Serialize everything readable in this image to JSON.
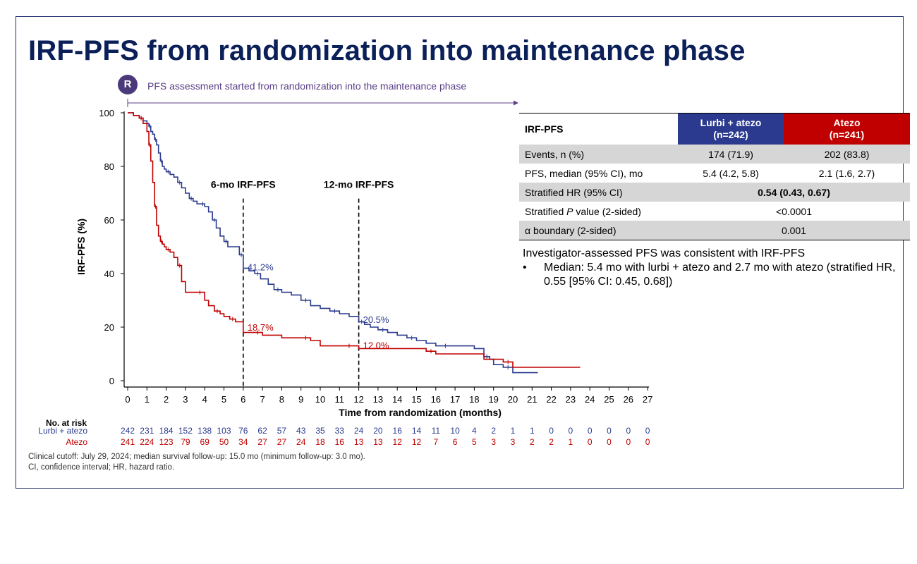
{
  "title": "IRF-PFS from randomization into maintenance phase",
  "randomization": {
    "badge": "R",
    "note": "PFS assessment started from randomization into the maintenance phase"
  },
  "colors": {
    "lurbi": "#2b3a8f",
    "atezo": "#c00000",
    "title": "#0b2058",
    "badge": "#4b3a7a"
  },
  "chart_data": {
    "type": "line",
    "subtype": "kaplan-meier",
    "xlabel": "Time from randomization (months)",
    "ylabel": "IRF-PFS (%)",
    "xlim": [
      0,
      27
    ],
    "ylim": [
      0,
      100
    ],
    "xticks": [
      0,
      1,
      2,
      3,
      4,
      5,
      6,
      7,
      8,
      9,
      10,
      11,
      12,
      13,
      14,
      15,
      16,
      17,
      18,
      19,
      20,
      21,
      22,
      23,
      24,
      25,
      26,
      27
    ],
    "yticks": [
      0,
      20,
      40,
      60,
      80,
      100
    ],
    "grid": false,
    "reference_lines": [
      {
        "x": 6,
        "label": "6-mo IRF-PFS"
      },
      {
        "x": 12,
        "label": "12-mo IRF-PFS"
      }
    ],
    "annotations": [
      {
        "series": "Lurbi + atezo",
        "x": 6,
        "y": 41.2,
        "text": "41.2%"
      },
      {
        "series": "Lurbi + atezo",
        "x": 12,
        "y": 20.5,
        "text": "20.5%"
      },
      {
        "series": "Atezo",
        "x": 6,
        "y": 18.7,
        "text": "18.7%"
      },
      {
        "series": "Atezo",
        "x": 12,
        "y": 12.0,
        "text": "12.0%"
      }
    ],
    "series": [
      {
        "name": "Lurbi + atezo",
        "color": "#2b3a8f",
        "x": [
          0,
          0.3,
          0.6,
          0.8,
          1.0,
          1.1,
          1.2,
          1.3,
          1.4,
          1.5,
          1.6,
          1.7,
          1.8,
          1.9,
          2.0,
          2.2,
          2.4,
          2.6,
          2.8,
          3.0,
          3.2,
          3.4,
          3.6,
          3.8,
          4.0,
          4.2,
          4.4,
          4.6,
          4.8,
          5.0,
          5.2,
          5.5,
          5.8,
          6.0,
          6.3,
          6.6,
          6.9,
          7.3,
          7.6,
          8.0,
          8.5,
          9.0,
          9.5,
          10.0,
          10.5,
          11.0,
          11.5,
          12.0,
          12.3,
          12.6,
          13.0,
          13.5,
          14.0,
          14.5,
          15.0,
          15.5,
          16.0,
          17.0,
          18.0,
          18.5,
          18.8,
          19.0,
          19.5,
          20.0,
          21.3
        ],
        "y": [
          100,
          99,
          98,
          97,
          96,
          95,
          93,
          92,
          90,
          88,
          85,
          82,
          80,
          79,
          78,
          77,
          76,
          74,
          72,
          70,
          68,
          67,
          66,
          66,
          65,
          63,
          60,
          57,
          54,
          52,
          50,
          50,
          47,
          42,
          41,
          40,
          38,
          36,
          34,
          33,
          32,
          30,
          28,
          27,
          26,
          25,
          24,
          22,
          21,
          20,
          19,
          18,
          17,
          16,
          15,
          14,
          13,
          13,
          12,
          9,
          8,
          6,
          5,
          3,
          3
        ]
      },
      {
        "name": "Atezo",
        "color": "#c00000",
        "x": [
          0,
          0.3,
          0.6,
          0.8,
          1.0,
          1.1,
          1.2,
          1.3,
          1.4,
          1.5,
          1.6,
          1.7,
          1.8,
          1.9,
          2.0,
          2.2,
          2.4,
          2.6,
          2.8,
          3.0,
          3.5,
          4.0,
          4.2,
          4.5,
          4.8,
          5.0,
          5.3,
          5.6,
          6.0,
          6.5,
          7.0,
          8.0,
          9.0,
          9.5,
          10.0,
          11.0,
          12.0,
          12.5,
          15.5,
          16.0,
          18.5,
          19.5,
          20.0,
          21.5,
          23.5
        ],
        "y": [
          100,
          99,
          98,
          96,
          93,
          88,
          82,
          74,
          65,
          58,
          54,
          52,
          51,
          50,
          49,
          48,
          46,
          43,
          37,
          33,
          33,
          30,
          28,
          26,
          25,
          24,
          23,
          22,
          18,
          18,
          17,
          16,
          16,
          15,
          13,
          13,
          12,
          12,
          11,
          10,
          8,
          7,
          5,
          5,
          5
        ]
      }
    ],
    "risk_table": {
      "heading": "No. at risk",
      "rows": [
        {
          "name": "Lurbi + atezo",
          "values": [
            "242",
            "231",
            "184",
            "152",
            "138",
            "103",
            "76",
            "62",
            "57",
            "43",
            "35",
            "33",
            "24",
            "20",
            "16",
            "14",
            "11",
            "10",
            "4",
            "2",
            "1",
            "1",
            "0",
            "0",
            "0",
            "0",
            "0",
            "0"
          ]
        },
        {
          "name": "Atezo",
          "values": [
            "241",
            "224",
            "123",
            "79",
            "69",
            "50",
            "34",
            "27",
            "27",
            "24",
            "18",
            "16",
            "13",
            "13",
            "12",
            "12",
            "7",
            "6",
            "5",
            "3",
            "3",
            "2",
            "2",
            "1",
            "0",
            "0",
            "0",
            "0"
          ]
        }
      ]
    }
  },
  "table": {
    "header": {
      "label": "IRF-PFS",
      "arm1": "Lurbi + atezo",
      "arm1_n": "(n=242)",
      "arm2": "Atezo",
      "arm2_n": "(n=241)"
    },
    "rows": {
      "events": {
        "label": "Events, n (%)",
        "arm1": "174 (71.9)",
        "arm2": "202 (83.8)"
      },
      "median": {
        "label": "PFS, median (95% CI), mo",
        "arm1": "5.4 (4.2, 5.8)",
        "arm2": "2.1 (1.6, 2.7)"
      },
      "hr": {
        "label": "Stratified HR (95% CI)",
        "value": "0.54 (0.43, 0.67)"
      },
      "pvalue": {
        "label_pre": "Stratified ",
        "label_em": "P",
        "label_post": " value (2-sided)",
        "value": "<0.0001"
      },
      "alpha": {
        "label": "α boundary (2-sided)",
        "value": "0.001"
      }
    }
  },
  "investigator": {
    "heading": "Investigator-assessed PFS was consistent with IRF-PFS",
    "bullet_symbol": "•",
    "bullet": "Median: 5.4 mo with lurbi + atezo and 2.7 mo with atezo (stratified HR, 0.55 [95% CI: 0.45, 0.68])"
  },
  "footnotes": [
    "Clinical cutoff: July 29, 2024; median survival follow-up: 15.0 mo (minimum follow-up: 3.0 mo).",
    "CI, confidence interval; HR, hazard ratio."
  ]
}
